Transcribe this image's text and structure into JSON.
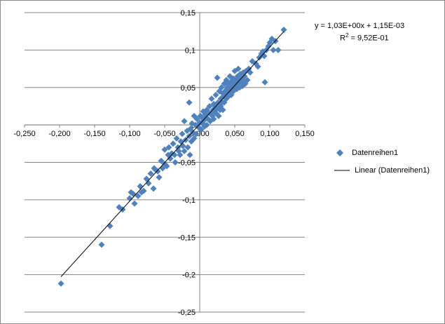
{
  "chart_data": {
    "type": "scatter",
    "title": "",
    "xlabel": "",
    "ylabel": "",
    "xlim": [
      -0.25,
      0.15
    ],
    "ylim": [
      -0.25,
      0.15
    ],
    "x_ticks": [
      "-0,250",
      "-0,200",
      "-0,150",
      "-0,100",
      "-0,050",
      "0,000",
      "0,050",
      "0,100",
      "0,150"
    ],
    "x_tick_values": [
      -0.25,
      -0.2,
      -0.15,
      -0.1,
      -0.05,
      0.0,
      0.05,
      0.1,
      0.15
    ],
    "y_ticks": [
      "0,15",
      "0,1",
      "0,05",
      "0",
      "-0,05",
      "-0,1",
      "-0,15",
      "-0,2",
      "-0,25"
    ],
    "y_tick_values": [
      0.15,
      0.1,
      0.05,
      0.0,
      -0.05,
      -0.1,
      -0.15,
      -0.2,
      -0.25
    ],
    "grid": "horizontal",
    "legend_position": "right",
    "marker_color": "#4F81BD",
    "line_color": "#000000",
    "series": [
      {
        "name": "Datenreihen1",
        "marker": "diamond",
        "points": [
          [
            -0.198,
            -0.212
          ],
          [
            -0.14,
            -0.16
          ],
          [
            -0.128,
            -0.135
          ],
          [
            -0.115,
            -0.11
          ],
          [
            -0.11,
            -0.113
          ],
          [
            -0.1,
            -0.098
          ],
          [
            -0.098,
            -0.09
          ],
          [
            -0.095,
            -0.092
          ],
          [
            -0.093,
            -0.105
          ],
          [
            -0.088,
            -0.095
          ],
          [
            -0.085,
            -0.082
          ],
          [
            -0.083,
            -0.09
          ],
          [
            -0.08,
            -0.088
          ],
          [
            -0.076,
            -0.072
          ],
          [
            -0.073,
            -0.078
          ],
          [
            -0.07,
            -0.065
          ],
          [
            -0.066,
            -0.085
          ],
          [
            -0.065,
            -0.058
          ],
          [
            -0.063,
            -0.06
          ],
          [
            -0.06,
            -0.062
          ],
          [
            -0.058,
            -0.07
          ],
          [
            -0.055,
            -0.048
          ],
          [
            -0.053,
            -0.058
          ],
          [
            -0.05,
            -0.052
          ],
          [
            -0.05,
            -0.033
          ],
          [
            -0.047,
            -0.055
          ],
          [
            -0.045,
            -0.04
          ],
          [
            -0.044,
            -0.03
          ],
          [
            -0.042,
            -0.045
          ],
          [
            -0.04,
            -0.038
          ],
          [
            -0.038,
            -0.025
          ],
          [
            -0.036,
            -0.04
          ],
          [
            -0.035,
            -0.05
          ],
          [
            -0.033,
            -0.018
          ],
          [
            -0.031,
            -0.03
          ],
          [
            -0.03,
            -0.035
          ],
          [
            -0.028,
            -0.04
          ],
          [
            -0.027,
            -0.022
          ],
          [
            -0.025,
            -0.012
          ],
          [
            -0.024,
            -0.028
          ],
          [
            -0.022,
            -0.035
          ],
          [
            -0.022,
            0.005
          ],
          [
            -0.02,
            -0.02
          ],
          [
            -0.018,
            -0.008
          ],
          [
            -0.017,
            -0.03
          ],
          [
            -0.015,
            -0.015
          ],
          [
            -0.015,
            0.03
          ],
          [
            -0.014,
            -0.04
          ],
          [
            -0.013,
            -0.005
          ],
          [
            -0.012,
            -0.022
          ],
          [
            -0.011,
            0.002
          ],
          [
            -0.01,
            -0.01
          ],
          [
            -0.008,
            -0.018
          ],
          [
            -0.008,
            0.012
          ],
          [
            -0.006,
            0.0
          ],
          [
            -0.005,
            -0.012
          ],
          [
            -0.004,
            0.008
          ],
          [
            -0.002,
            -0.003
          ],
          [
            0.0,
            0.003
          ],
          [
            0.001,
            0.012
          ],
          [
            0.002,
            -0.006
          ],
          [
            0.003,
            0.01
          ],
          [
            0.004,
            0.002
          ],
          [
            0.005,
            0.018
          ],
          [
            0.006,
            0.006
          ],
          [
            0.007,
            -0.002
          ],
          [
            0.008,
            0.014
          ],
          [
            0.009,
            0.01
          ],
          [
            0.01,
            0.0
          ],
          [
            0.01,
            0.02
          ],
          [
            0.012,
            0.008
          ],
          [
            0.013,
            0.016
          ],
          [
            0.014,
            0.025
          ],
          [
            0.015,
            0.005
          ],
          [
            0.016,
            0.015
          ],
          [
            0.017,
            0.035
          ],
          [
            0.018,
            0.012
          ],
          [
            0.019,
            0.02
          ],
          [
            0.02,
            0.028
          ],
          [
            0.02,
            0.008
          ],
          [
            0.021,
            0.018
          ],
          [
            0.022,
            0.025
          ],
          [
            0.023,
            0.04
          ],
          [
            0.024,
            0.015
          ],
          [
            0.025,
            0.022
          ],
          [
            0.025,
            0.063
          ],
          [
            0.026,
            0.03
          ],
          [
            0.027,
            0.012
          ],
          [
            0.028,
            0.028
          ],
          [
            0.028,
            0.045
          ],
          [
            0.029,
            0.02
          ],
          [
            0.03,
            0.035
          ],
          [
            0.03,
            0.025
          ],
          [
            0.031,
            0.05
          ],
          [
            0.032,
            0.03
          ],
          [
            0.033,
            0.042
          ],
          [
            0.033,
            0.02
          ],
          [
            0.034,
            0.038
          ],
          [
            0.035,
            0.055
          ],
          [
            0.035,
            0.03
          ],
          [
            0.036,
            0.045
          ],
          [
            0.037,
            0.04
          ],
          [
            0.038,
            0.06
          ],
          [
            0.038,
            0.035
          ],
          [
            0.039,
            0.05
          ],
          [
            0.04,
            0.045
          ],
          [
            0.04,
            0.055
          ],
          [
            0.041,
            0.038
          ],
          [
            0.042,
            0.052
          ],
          [
            0.043,
            0.045
          ],
          [
            0.043,
            0.065
          ],
          [
            0.044,
            0.05
          ],
          [
            0.045,
            0.04
          ],
          [
            0.045,
            0.058
          ],
          [
            0.046,
            0.048
          ],
          [
            0.047,
            0.055
          ],
          [
            0.048,
            0.062
          ],
          [
            0.048,
            0.045
          ],
          [
            0.049,
            0.05
          ],
          [
            0.05,
            0.058
          ],
          [
            0.05,
            0.072
          ],
          [
            0.051,
            0.052
          ],
          [
            0.052,
            0.06
          ],
          [
            0.053,
            0.048
          ],
          [
            0.054,
            0.065
          ],
          [
            0.055,
            0.055
          ],
          [
            0.055,
            0.075
          ],
          [
            0.056,
            0.06
          ],
          [
            0.057,
            0.05
          ],
          [
            0.058,
            0.068
          ],
          [
            0.059,
            0.058
          ],
          [
            0.06,
            0.062
          ],
          [
            0.061,
            0.052
          ],
          [
            0.062,
            0.07
          ],
          [
            0.063,
            0.058
          ],
          [
            0.064,
            0.065
          ],
          [
            0.065,
            0.055
          ],
          [
            0.066,
            0.072
          ],
          [
            0.068,
            0.06
          ],
          [
            0.07,
            0.075
          ],
          [
            0.072,
            0.07
          ],
          [
            0.075,
            0.085
          ],
          [
            0.08,
            0.082
          ],
          [
            0.083,
            0.078
          ],
          [
            0.085,
            0.09
          ],
          [
            0.088,
            0.095
          ],
          [
            0.09,
            0.098
          ],
          [
            0.092,
            0.092
          ],
          [
            0.093,
            0.057
          ],
          [
            0.095,
            0.1
          ],
          [
            0.098,
            0.105
          ],
          [
            0.1,
            0.11
          ],
          [
            0.103,
            0.115
          ],
          [
            0.105,
            0.1
          ],
          [
            0.108,
            0.112
          ],
          [
            0.112,
            0.1
          ],
          [
            0.12,
            0.127
          ]
        ]
      },
      {
        "name": "Linear (Datenreihen1)",
        "type": "line",
        "slope": 1.03,
        "intercept": 0.00115,
        "x_range": [
          -0.198,
          0.12
        ]
      }
    ],
    "annotations": {
      "equation": "y = 1,03E+00x + 1,15E-03",
      "r2_prefix": "R",
      "r2_sup": "2",
      "r2_value": " = 9,52E-01"
    }
  },
  "legend": {
    "items": [
      {
        "label": "Datenreihen1",
        "symbol": "diamond"
      },
      {
        "label": "Linear (Datenreihen1)",
        "symbol": "line"
      }
    ]
  }
}
